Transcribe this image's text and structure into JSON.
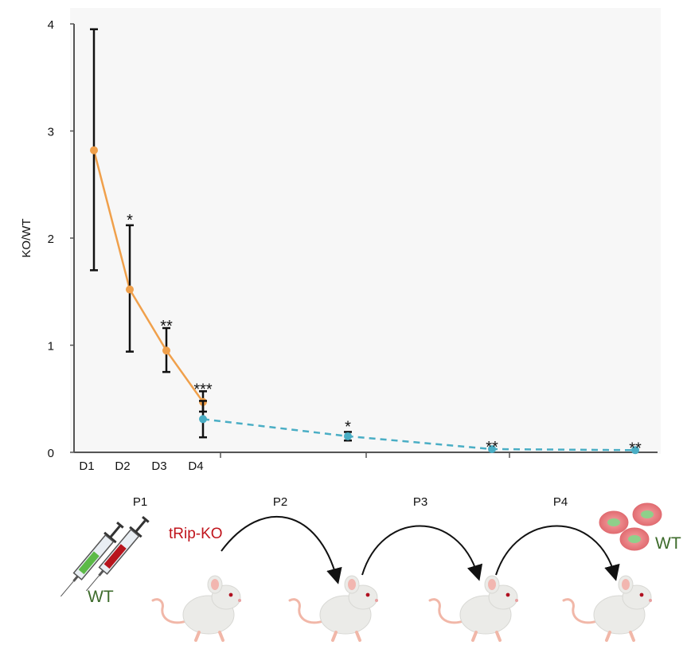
{
  "chart_data": {
    "type": "line",
    "ylabel": "KO/WT",
    "ylim": [
      0,
      4
    ],
    "yticks": [
      "0",
      "1",
      "2",
      "3",
      "4"
    ],
    "x_ticks": [
      "D1",
      "D2",
      "D3",
      "D4"
    ],
    "passage_labels": [
      "P1",
      "P2",
      "P3",
      "P4"
    ],
    "series": [
      {
        "color": "#f0a04b",
        "style": "solid",
        "x": [
          "D1",
          "D2",
          "D3",
          "D4"
        ],
        "values": [
          2.82,
          1.52,
          0.95,
          0.47
        ],
        "err_low": [
          1.12,
          0.58,
          0.2,
          0.09
        ],
        "err_high": [
          1.13,
          0.6,
          0.21,
          0.1
        ],
        "annotations": [
          "",
          "*",
          "**",
          "***"
        ]
      },
      {
        "color": "#4aaec5",
        "style": "dashed",
        "x": [
          "D4",
          "P2",
          "P3",
          "P4"
        ],
        "values": [
          0.31,
          0.15,
          0.03,
          0.02
        ],
        "err_low": [
          0.17,
          0.04,
          0.0,
          0.0
        ],
        "err_high": [
          0.17,
          0.04,
          0.0,
          0.0
        ],
        "annotations": [
          "",
          "*",
          "**",
          "**"
        ]
      }
    ]
  },
  "illustration": {
    "wt_label": "WT",
    "ko_label": "tRip-KO",
    "cells_label": "WT",
    "icons": [
      "syringe-wt",
      "syringe-ko",
      "mouse",
      "cell"
    ]
  }
}
